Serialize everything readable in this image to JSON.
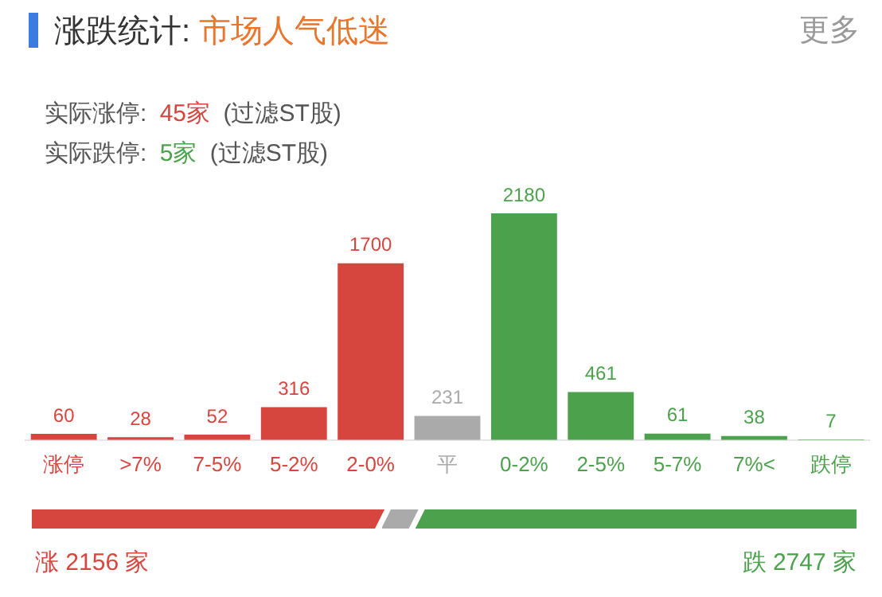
{
  "chart_data": {
    "type": "bar",
    "title": "涨跌统计: 市场人气低迷",
    "annotations": [
      "更多",
      "实际涨停: 45家 (过滤ST股)",
      "实际跌停: 5家 (过滤ST股)",
      "涨 2156 家",
      "跌 2747 家"
    ],
    "categories": [
      "涨停",
      ">7%",
      "7-5%",
      "5-2%",
      "2-0%",
      "平",
      "0-2%",
      "2-5%",
      "5-7%",
      "7%<",
      "跌停"
    ],
    "values": [
      60,
      28,
      52,
      316,
      1700,
      231,
      2180,
      461,
      61,
      38,
      7
    ],
    "colors": [
      "#d6463f",
      "#d6463f",
      "#d6463f",
      "#d6463f",
      "#d6463f",
      "#aaaaaa",
      "#4ca24c",
      "#4ca24c",
      "#4ca24c",
      "#4ca24c",
      "#4ca24c"
    ],
    "data_labels": true,
    "grid": false,
    "legend": false,
    "tick_labels": "x"
  }
}
